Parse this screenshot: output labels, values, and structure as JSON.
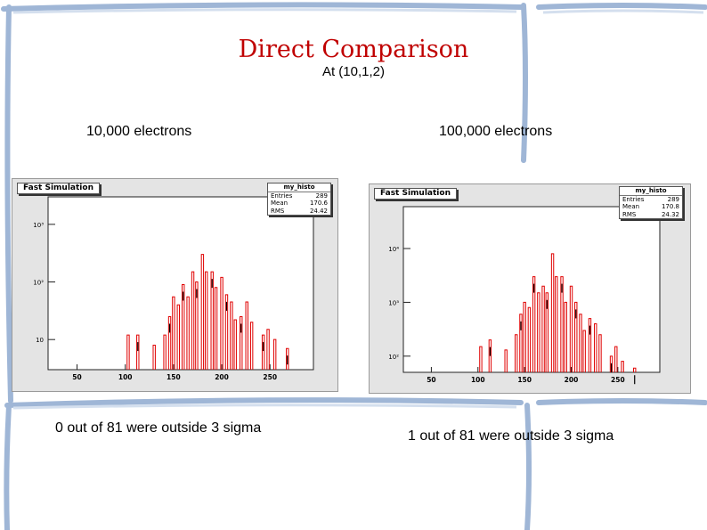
{
  "slide": {
    "title": "Direct Comparison",
    "subtitle": "At (10,1,2)",
    "label_left": "10,000 electrons",
    "label_right": "100,000 electrons",
    "note_left": "0 out of 81 were outside 3 sigma",
    "note_right": "1 out of 81 were outside 3 sigma"
  },
  "chart_data": [
    {
      "type": "histogram",
      "title": "Fast Simulation",
      "stats": {
        "name": "my_histo",
        "rows": [
          [
            "Entries",
            "289"
          ],
          [
            "Mean",
            "170.6"
          ],
          [
            "RMS",
            "24.42"
          ]
        ]
      },
      "x_ticks": [
        "50",
        "100",
        "150",
        "200",
        "250"
      ],
      "y_ticks": [
        "10",
        "10²",
        "10³"
      ],
      "x_range": [
        20,
        295
      ],
      "y_scale": "log",
      "y_range": [
        3,
        3000
      ],
      "line_color": "#e00000",
      "peaks": [
        [
          103,
          12
        ],
        [
          113,
          12
        ],
        [
          130,
          8
        ],
        [
          141,
          12
        ],
        [
          146,
          25
        ],
        [
          150,
          55
        ],
        [
          155,
          40
        ],
        [
          160,
          90
        ],
        [
          165,
          55
        ],
        [
          170,
          150
        ],
        [
          174,
          100
        ],
        [
          180,
          300
        ],
        [
          184,
          150
        ],
        [
          190,
          150
        ],
        [
          194,
          80
        ],
        [
          200,
          120
        ],
        [
          205,
          60
        ],
        [
          210,
          45
        ],
        [
          214,
          22
        ],
        [
          220,
          25
        ],
        [
          226,
          45
        ],
        [
          231,
          20
        ],
        [
          243,
          12
        ],
        [
          248,
          15
        ],
        [
          255,
          10
        ],
        [
          268,
          7
        ]
      ]
    },
    {
      "type": "histogram",
      "title": "Fast Simulation",
      "stats": {
        "name": "my_histo",
        "rows": [
          [
            "Entries",
            "289"
          ],
          [
            "Mean",
            "170.8"
          ],
          [
            "RMS",
            "24.32"
          ]
        ]
      },
      "x_ticks": [
        "50",
        "100",
        "150",
        "200",
        "250"
      ],
      "y_ticks": [
        "10²",
        "10³",
        "10⁴"
      ],
      "x_range": [
        20,
        295
      ],
      "y_scale": "log",
      "y_range": [
        50,
        60000
      ],
      "line_color": "#e00000",
      "peaks": [
        [
          103,
          150
        ],
        [
          113,
          200
        ],
        [
          130,
          130
        ],
        [
          141,
          250
        ],
        [
          146,
          600
        ],
        [
          150,
          1000
        ],
        [
          155,
          800
        ],
        [
          160,
          3000
        ],
        [
          165,
          1500
        ],
        [
          170,
          2000
        ],
        [
          174,
          1500
        ],
        [
          180,
          8000
        ],
        [
          184,
          3000
        ],
        [
          190,
          3000
        ],
        [
          194,
          1000
        ],
        [
          200,
          2000
        ],
        [
          205,
          1000
        ],
        [
          210,
          600
        ],
        [
          214,
          300
        ],
        [
          220,
          500
        ],
        [
          226,
          400
        ],
        [
          231,
          250
        ],
        [
          243,
          100
        ],
        [
          248,
          150
        ],
        [
          255,
          80
        ],
        [
          268,
          60
        ]
      ]
    }
  ]
}
